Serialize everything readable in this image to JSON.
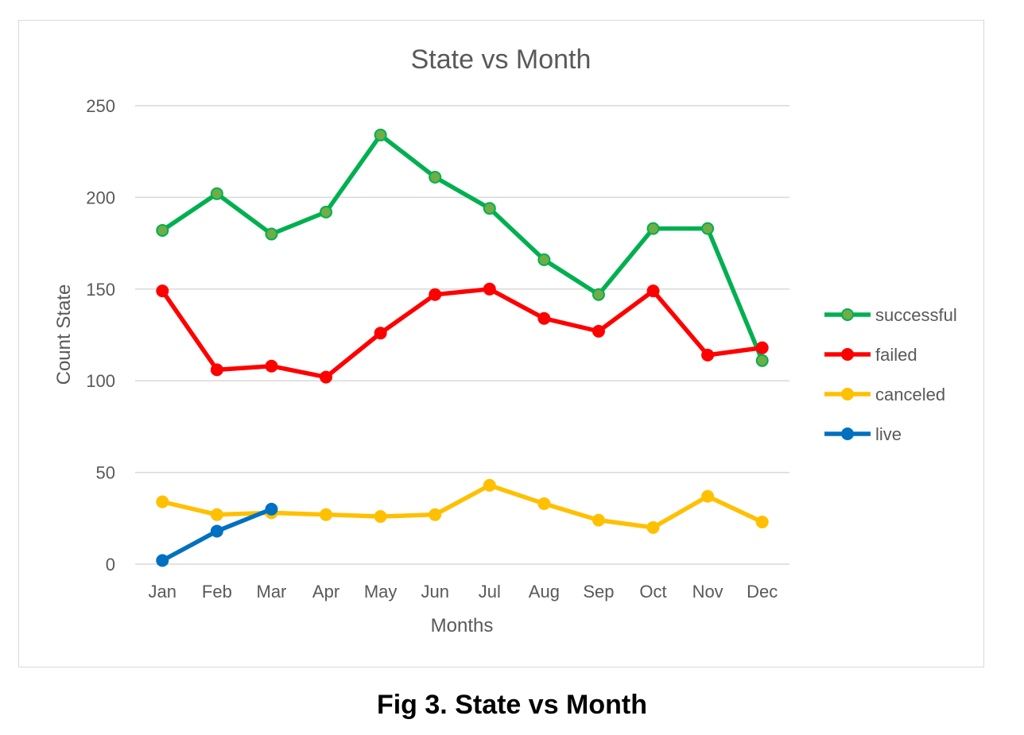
{
  "chart_data": {
    "type": "line",
    "title": "State vs Month",
    "xlabel": "Months",
    "ylabel": "Count State",
    "ylim": [
      0,
      250
    ],
    "yticks": [
      0,
      50,
      100,
      150,
      200,
      250
    ],
    "grid": true,
    "legend_position": "right",
    "categories": [
      "Jan",
      "Feb",
      "Mar",
      "Apr",
      "May",
      "Jun",
      "Jul",
      "Aug",
      "Sep",
      "Oct",
      "Nov",
      "Dec"
    ],
    "series": [
      {
        "name": "successful",
        "color": "#00b050",
        "marker_fill": "#70ad47",
        "values": [
          182,
          202,
          180,
          192,
          234,
          211,
          194,
          166,
          147,
          183,
          183,
          111
        ]
      },
      {
        "name": "failed",
        "color": "#ff0000",
        "marker_fill": "#ff0000",
        "values": [
          149,
          106,
          108,
          102,
          126,
          147,
          150,
          134,
          127,
          149,
          114,
          118
        ]
      },
      {
        "name": "canceled",
        "color": "#ffc000",
        "marker_fill": "#ffc000",
        "values": [
          34,
          27,
          28,
          27,
          26,
          27,
          43,
          33,
          24,
          20,
          37,
          23
        ]
      },
      {
        "name": "live",
        "color": "#0070c0",
        "marker_fill": "#0070c0",
        "values": [
          2,
          18,
          30,
          null,
          null,
          null,
          null,
          null,
          null,
          null,
          null,
          null
        ]
      }
    ]
  },
  "caption": "Fig 3. State vs Month"
}
